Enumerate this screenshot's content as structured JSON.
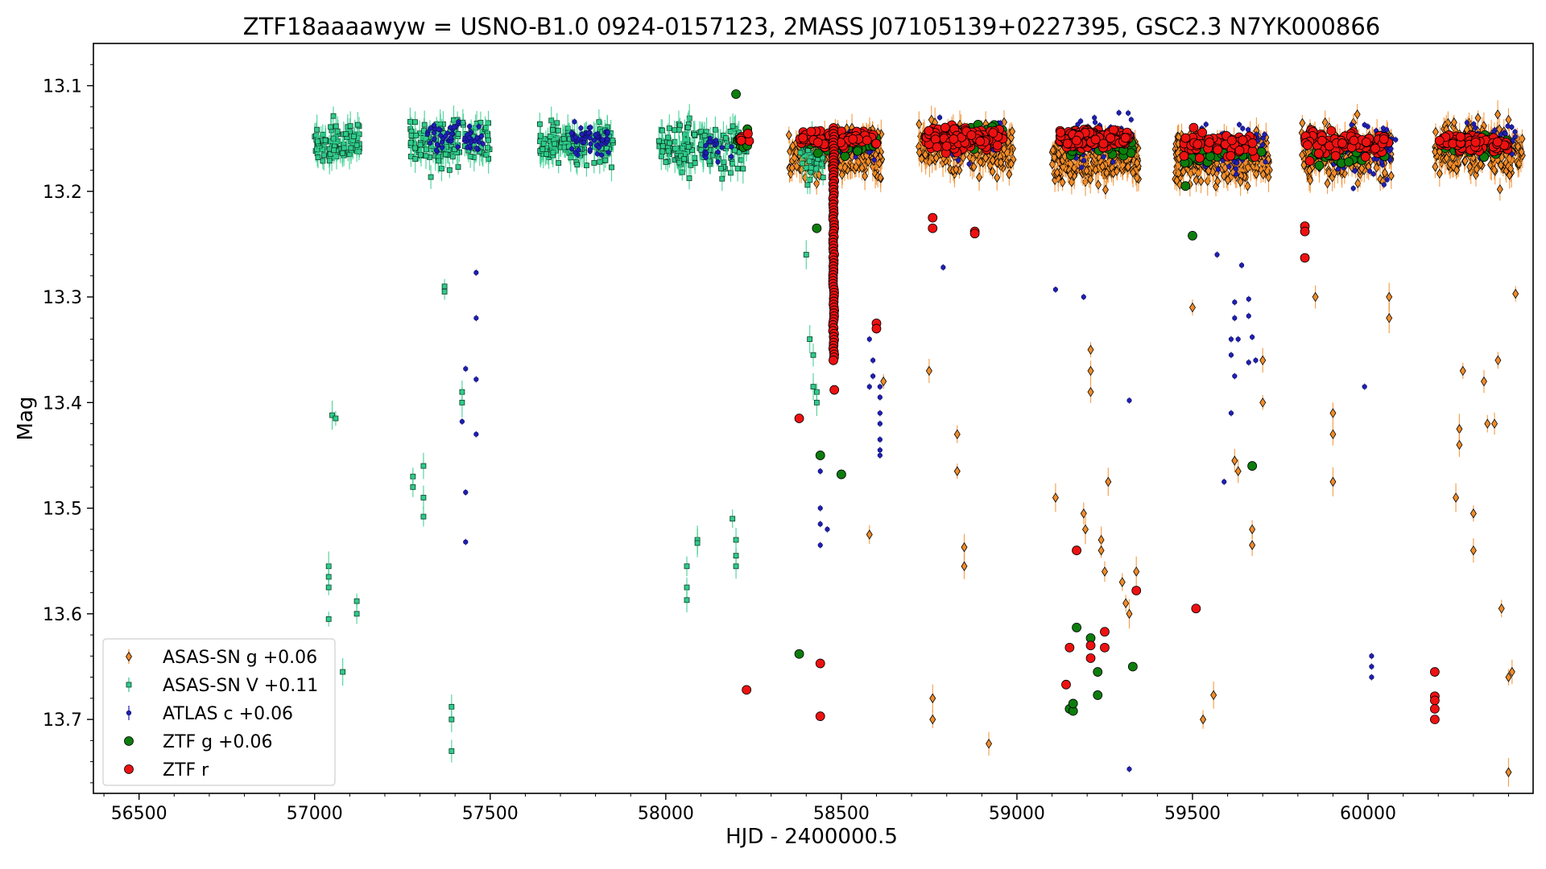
{
  "chart_data": {
    "type": "scatter",
    "title": "ZTF18aaaawyw = USNO-B1.0 0924-0157123, 2MASS J07105139+0227395, GSC2.3 N7YK000866",
    "xlabel": "HJD - 2400000.5",
    "ylabel": "Mag",
    "xlim": [
      56370,
      60470
    ],
    "ylim": [
      13.77,
      13.06
    ],
    "y_inverted": true,
    "x_ticks": [
      56500,
      57000,
      57500,
      58000,
      58500,
      59000,
      59500,
      60000
    ],
    "x_tick_labels": [
      "56500",
      "57000",
      "57500",
      "58000",
      "58500",
      "59000",
      "59500",
      "60000"
    ],
    "y_ticks": [
      13.1,
      13.2,
      13.3,
      13.4,
      13.5,
      13.6,
      13.7
    ],
    "y_tick_labels": [
      "13.1",
      "13.2",
      "13.3",
      "13.4",
      "13.5",
      "13.6",
      "13.7"
    ],
    "grid": false,
    "legend_position": "lower-left",
    "series": [
      {
        "name": "ASAS-SN g +0.06",
        "marker": "diamond",
        "color": "#f28c28",
        "edge": "#000000",
        "errbar": true,
        "baseline_seasons": [
          {
            "x0": 58350,
            "x1": 58620,
            "n": 220,
            "center": 13.165,
            "spread": 0.04
          },
          {
            "x0": 58720,
            "x1": 58990,
            "n": 200,
            "center": 13.16,
            "spread": 0.04
          },
          {
            "x0": 59100,
            "x1": 59350,
            "n": 240,
            "center": 13.17,
            "spread": 0.035
          },
          {
            "x0": 59450,
            "x1": 59720,
            "n": 240,
            "center": 13.17,
            "spread": 0.04
          },
          {
            "x0": 59810,
            "x1": 60070,
            "n": 200,
            "center": 13.165,
            "spread": 0.045
          },
          {
            "x0": 60190,
            "x1": 60440,
            "n": 210,
            "center": 13.16,
            "spread": 0.045
          }
        ],
        "outliers": [
          [
            58580,
            13.525
          ],
          [
            58620,
            13.38
          ],
          [
            58750,
            13.37
          ],
          [
            58760,
            13.7
          ],
          [
            58760,
            13.68
          ],
          [
            58830,
            13.43
          ],
          [
            58830,
            13.465
          ],
          [
            58850,
            13.537
          ],
          [
            58850,
            13.555
          ],
          [
            58920,
            13.723
          ],
          [
            59110,
            13.49
          ],
          [
            59190,
            13.505
          ],
          [
            59195,
            13.52
          ],
          [
            59210,
            13.35
          ],
          [
            59210,
            13.37
          ],
          [
            59210,
            13.39
          ],
          [
            59240,
            13.53
          ],
          [
            59240,
            13.54
          ],
          [
            59250,
            13.56
          ],
          [
            59260,
            13.475
          ],
          [
            59300,
            13.57
          ],
          [
            59310,
            13.59
          ],
          [
            59320,
            13.6
          ],
          [
            59340,
            13.56
          ],
          [
            59500,
            13.31
          ],
          [
            59530,
            13.7
          ],
          [
            59560,
            13.677
          ],
          [
            59620,
            13.455
          ],
          [
            59630,
            13.465
          ],
          [
            59670,
            13.52
          ],
          [
            59670,
            13.535
          ],
          [
            59700,
            13.36
          ],
          [
            59700,
            13.4
          ],
          [
            59850,
            13.3
          ],
          [
            59900,
            13.41
          ],
          [
            59900,
            13.43
          ],
          [
            59900,
            13.475
          ],
          [
            60060,
            13.3
          ],
          [
            60060,
            13.32
          ],
          [
            60250,
            13.49
          ],
          [
            60260,
            13.425
          ],
          [
            60260,
            13.44
          ],
          [
            60270,
            13.37
          ],
          [
            60300,
            13.505
          ],
          [
            60300,
            13.54
          ],
          [
            60330,
            13.38
          ],
          [
            60340,
            13.42
          ],
          [
            60360,
            13.42
          ],
          [
            60370,
            13.36
          ],
          [
            60380,
            13.595
          ],
          [
            60400,
            13.66
          ],
          [
            60410,
            13.655
          ],
          [
            60420,
            13.297
          ],
          [
            60400,
            13.75
          ]
        ]
      },
      {
        "name": "ASAS-SN V +0.11",
        "marker": "square",
        "color": "#2ecc8a",
        "edge": "#0d3d2a",
        "errbar": true,
        "baseline_seasons": [
          {
            "x0": 57000,
            "x1": 57130,
            "n": 90,
            "center": 13.155,
            "spread": 0.03
          },
          {
            "x0": 57270,
            "x1": 57500,
            "n": 130,
            "center": 13.155,
            "spread": 0.04
          },
          {
            "x0": 57640,
            "x1": 57850,
            "n": 140,
            "center": 13.155,
            "spread": 0.035
          },
          {
            "x0": 57980,
            "x1": 58230,
            "n": 150,
            "center": 13.16,
            "spread": 0.04
          },
          {
            "x0": 58380,
            "x1": 58450,
            "n": 40,
            "center": 13.17,
            "spread": 0.04
          }
        ],
        "outliers": [
          [
            57050,
            13.412
          ],
          [
            57040,
            13.555
          ],
          [
            57040,
            13.565
          ],
          [
            57040,
            13.575
          ],
          [
            57040,
            13.605
          ],
          [
            57080,
            13.655
          ],
          [
            57120,
            13.588
          ],
          [
            57120,
            13.6
          ],
          [
            57280,
            13.47
          ],
          [
            57280,
            13.48
          ],
          [
            57310,
            13.46
          ],
          [
            57310,
            13.49
          ],
          [
            57310,
            13.508
          ],
          [
            57370,
            13.295
          ],
          [
            57370,
            13.29
          ],
          [
            57390,
            13.688
          ],
          [
            57390,
            13.7
          ],
          [
            57390,
            13.73
          ],
          [
            57420,
            13.39
          ],
          [
            57420,
            13.4
          ],
          [
            57060,
            13.415
          ],
          [
            58060,
            13.555
          ],
          [
            58060,
            13.575
          ],
          [
            58060,
            13.587
          ],
          [
            58090,
            13.53
          ],
          [
            58090,
            13.533
          ],
          [
            58190,
            13.51
          ],
          [
            58200,
            13.53
          ],
          [
            58200,
            13.555
          ],
          [
            58200,
            13.545
          ],
          [
            58400,
            13.26
          ],
          [
            58410,
            13.34
          ],
          [
            58420,
            13.355
          ],
          [
            58420,
            13.385
          ],
          [
            58430,
            13.39
          ],
          [
            58430,
            13.4
          ]
        ]
      },
      {
        "name": "ATLAS c +0.06",
        "marker": "dot",
        "color": "#1f1fb4",
        "edge": "#0a0a55",
        "errbar": true,
        "baseline_seasons": [
          {
            "x0": 57320,
            "x1": 57490,
            "n": 60,
            "center": 13.15,
            "spread": 0.03
          },
          {
            "x0": 57730,
            "x1": 57840,
            "n": 60,
            "center": 13.15,
            "spread": 0.025
          },
          {
            "x0": 58100,
            "x1": 58200,
            "n": 20,
            "center": 13.16,
            "spread": 0.03
          },
          {
            "x0": 58440,
            "x1": 58600,
            "n": 30,
            "center": 13.16,
            "spread": 0.03
          },
          {
            "x0": 58780,
            "x1": 58960,
            "n": 40,
            "center": 13.15,
            "spread": 0.035
          },
          {
            "x0": 59150,
            "x1": 59330,
            "n": 60,
            "center": 13.15,
            "spread": 0.04
          },
          {
            "x0": 59520,
            "x1": 59710,
            "n": 60,
            "center": 13.16,
            "spread": 0.04
          },
          {
            "x0": 59890,
            "x1": 60080,
            "n": 70,
            "center": 13.16,
            "spread": 0.045
          },
          {
            "x0": 60270,
            "x1": 60420,
            "n": 30,
            "center": 13.15,
            "spread": 0.03
          }
        ],
        "outliers": [
          [
            57460,
            13.277
          ],
          [
            57460,
            13.32
          ],
          [
            57460,
            13.378
          ],
          [
            57460,
            13.43
          ],
          [
            57430,
            13.368
          ],
          [
            57420,
            13.418
          ],
          [
            57430,
            13.485
          ],
          [
            57430,
            13.532
          ],
          [
            58440,
            13.465
          ],
          [
            58440,
            13.5
          ],
          [
            58440,
            13.515
          ],
          [
            58440,
            13.535
          ],
          [
            58460,
            13.52
          ],
          [
            58580,
            13.34
          ],
          [
            58590,
            13.36
          ],
          [
            58590,
            13.375
          ],
          [
            58580,
            13.385
          ],
          [
            58610,
            13.385
          ],
          [
            58610,
            13.395
          ],
          [
            58610,
            13.41
          ],
          [
            58610,
            13.42
          ],
          [
            58610,
            13.435
          ],
          [
            58610,
            13.445
          ],
          [
            58610,
            13.45
          ],
          [
            58790,
            13.272
          ],
          [
            59110,
            13.293
          ],
          [
            59190,
            13.3
          ],
          [
            59320,
            13.398
          ],
          [
            59320,
            13.747
          ],
          [
            59590,
            13.475
          ],
          [
            59620,
            13.305
          ],
          [
            59620,
            13.32
          ],
          [
            59610,
            13.34
          ],
          [
            59630,
            13.34
          ],
          [
            59610,
            13.355
          ],
          [
            59620,
            13.375
          ],
          [
            59610,
            13.41
          ],
          [
            59660,
            13.302
          ],
          [
            59660,
            13.318
          ],
          [
            59670,
            13.338
          ],
          [
            59680,
            13.36
          ],
          [
            59660,
            13.362
          ],
          [
            59990,
            13.385
          ],
          [
            60010,
            13.64
          ],
          [
            60010,
            13.65
          ],
          [
            60010,
            13.66
          ],
          [
            59570,
            13.26
          ],
          [
            59640,
            13.27
          ]
        ]
      },
      {
        "name": "ZTF g +0.06",
        "marker": "circle",
        "color": "#0d7d0d",
        "edge": "#000000",
        "errbar": false,
        "baseline_seasons": [
          {
            "x0": 58200,
            "x1": 58240,
            "n": 8,
            "center": 13.15,
            "spread": 0.02
          },
          {
            "x0": 58380,
            "x1": 58600,
            "n": 40,
            "center": 13.155,
            "spread": 0.02
          },
          {
            "x0": 58740,
            "x1": 58960,
            "n": 40,
            "center": 13.15,
            "spread": 0.02
          },
          {
            "x0": 59130,
            "x1": 59330,
            "n": 40,
            "center": 13.155,
            "spread": 0.02
          },
          {
            "x0": 59470,
            "x1": 59700,
            "n": 30,
            "center": 13.165,
            "spread": 0.02
          },
          {
            "x0": 59820,
            "x1": 60060,
            "n": 30,
            "center": 13.165,
            "spread": 0.02
          },
          {
            "x0": 60200,
            "x1": 60400,
            "n": 30,
            "center": 13.155,
            "spread": 0.02
          }
        ],
        "outliers": [
          [
            58200,
            13.108
          ],
          [
            58380,
            13.638
          ],
          [
            58440,
            13.45
          ],
          [
            58500,
            13.468
          ],
          [
            58430,
            13.235
          ],
          [
            59150,
            13.69
          ],
          [
            59160,
            13.692
          ],
          [
            59160,
            13.685
          ],
          [
            59170,
            13.613
          ],
          [
            59210,
            13.623
          ],
          [
            59230,
            13.655
          ],
          [
            59230,
            13.677
          ],
          [
            59330,
            13.65
          ],
          [
            59500,
            13.242
          ],
          [
            59670,
            13.46
          ],
          [
            59480,
            13.195
          ]
        ]
      },
      {
        "name": "ZTF r",
        "marker": "circle",
        "color": "#ee1111",
        "edge": "#000000",
        "errbar": false,
        "baseline_seasons": [
          {
            "x0": 58200,
            "x1": 58240,
            "n": 5,
            "center": 13.15,
            "spread": 0.01
          },
          {
            "x0": 58380,
            "x1": 58600,
            "n": 80,
            "center": 13.15,
            "spread": 0.015
          },
          {
            "x0": 58740,
            "x1": 58960,
            "n": 120,
            "center": 13.15,
            "spread": 0.02
          },
          {
            "x0": 59120,
            "x1": 59320,
            "n": 160,
            "center": 13.15,
            "spread": 0.015
          },
          {
            "x0": 59470,
            "x1": 59680,
            "n": 80,
            "center": 13.155,
            "spread": 0.02
          },
          {
            "x0": 59820,
            "x1": 60060,
            "n": 90,
            "center": 13.155,
            "spread": 0.02
          },
          {
            "x0": 60200,
            "x1": 60400,
            "n": 90,
            "center": 13.155,
            "spread": 0.015
          }
        ],
        "dense_column": {
          "x": 58478,
          "y0": 13.14,
          "y1": 13.36,
          "n": 80
        },
        "outliers": [
          [
            58230,
            13.672
          ],
          [
            58380,
            13.415
          ],
          [
            58440,
            13.647
          ],
          [
            58440,
            13.697
          ],
          [
            58480,
            13.388
          ],
          [
            58600,
            13.325
          ],
          [
            58600,
            13.33
          ],
          [
            58760,
            13.225
          ],
          [
            58760,
            13.235
          ],
          [
            58880,
            13.238
          ],
          [
            58880,
            13.24
          ],
          [
            59170,
            13.54
          ],
          [
            59150,
            13.632
          ],
          [
            59140,
            13.667
          ],
          [
            59210,
            13.63
          ],
          [
            59210,
            13.642
          ],
          [
            59250,
            13.617
          ],
          [
            59250,
            13.632
          ],
          [
            59340,
            13.578
          ],
          [
            59510,
            13.595
          ],
          [
            59820,
            13.233
          ],
          [
            59820,
            13.238
          ],
          [
            59820,
            13.263
          ],
          [
            60190,
            13.655
          ],
          [
            60190,
            13.678
          ],
          [
            60190,
            13.682
          ],
          [
            60190,
            13.69
          ],
          [
            60190,
            13.7
          ]
        ]
      }
    ]
  }
}
